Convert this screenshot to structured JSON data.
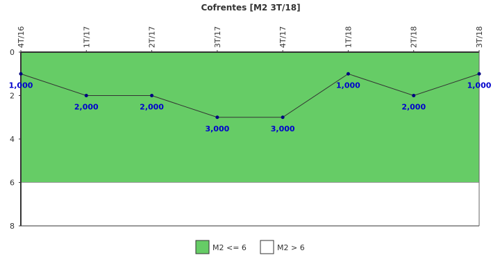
{
  "chart_data": {
    "type": "line",
    "title": "Cofrentes [M2 3T/18]",
    "categories": [
      "4T/16",
      "1T/17",
      "2T/17",
      "3T/17",
      "4T/17",
      "1T/18",
      "2T/18",
      "3T/18"
    ],
    "values": [
      1,
      2,
      2,
      3,
      3,
      1,
      2,
      1
    ],
    "value_labels": [
      "1,000",
      "2,000",
      "2,000",
      "3,000",
      "3,000",
      "1,000",
      "2,000",
      "1,000"
    ],
    "y_ticks": [
      "0",
      "2",
      "4",
      "6",
      "8"
    ],
    "ylim": [
      0,
      8
    ],
    "y_inverted": true,
    "x_axis_position": "top",
    "bands": [
      {
        "name": "M2 <= 6",
        "from": 0,
        "to": 6,
        "color": "#66cc66"
      },
      {
        "name": "M2 > 6",
        "from": 6,
        "to": 8,
        "color": "#ffffff"
      }
    ],
    "line_color": "#333333",
    "marker_color": "#000080",
    "legend_position": "bottom-center",
    "grid": false
  }
}
